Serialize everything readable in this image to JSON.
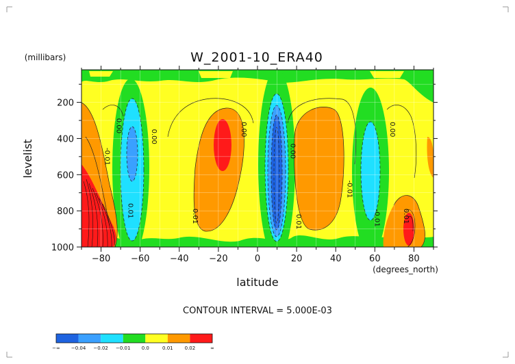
{
  "chart_data": {
    "type": "contour",
    "title": "W_2001-10_ERA40",
    "ylabel": "levelist",
    "y_units": "(millibars)",
    "xlabel": "latitude",
    "x_units": "(degrees_north)",
    "xlim": [
      -90,
      90
    ],
    "ylim": [
      1000,
      20
    ],
    "x_ticks": [
      -80,
      -60,
      -40,
      -20,
      0,
      20,
      40,
      60,
      80
    ],
    "y_ticks": [
      200,
      400,
      600,
      800,
      1000
    ],
    "y_tick_labels": [
      "200",
      "400",
      "600",
      "800",
      "1000"
    ],
    "grid": true,
    "contour_interval_text": "CONTOUR INTERVAL = 5.000E-03",
    "colorbar": {
      "levels": [
        "-∞",
        "-0.04",
        "-0.02",
        "-0.01",
        "0.0",
        "0.01",
        "0.02",
        "∞"
      ],
      "colors": [
        "#1e63e0",
        "#3aa0ff",
        "#1fe0ff",
        "#22dd22",
        "#ffff22",
        "#ff9900",
        "#ff1a1a"
      ]
    },
    "contour_labels": [
      {
        "text": "0.00",
        "lat": -72,
        "lev": 330
      },
      {
        "text": "0.00",
        "lat": -54,
        "lev": 390
      },
      {
        "text": "-0.01",
        "lat": -78,
        "lev": 500
      },
      {
        "text": "0.01",
        "lat": -66,
        "lev": 800
      },
      {
        "text": "0.00",
        "lat": -8,
        "lev": 350
      },
      {
        "text": "0.01",
        "lat": -33,
        "lev": 830
      },
      {
        "text": "0.00",
        "lat": 17,
        "lev": 470
      },
      {
        "text": "0.01",
        "lat": 20,
        "lev": 860
      },
      {
        "text": "-0.01",
        "lat": 46,
        "lev": 680
      },
      {
        "text": "-0.01",
        "lat": 60,
        "lev": 840
      },
      {
        "text": "0.00",
        "lat": 68,
        "lev": 350
      },
      {
        "text": "0.01",
        "lat": 75,
        "lev": 830
      }
    ],
    "features": [
      {
        "type": "min",
        "lat": -64,
        "lev": 520,
        "value": -0.02
      },
      {
        "type": "max",
        "lat": -18,
        "lev": 450,
        "value": 0.02
      },
      {
        "type": "min",
        "lat": 9,
        "lev": 560,
        "value": -0.04
      },
      {
        "type": "max",
        "lat": 31,
        "lev": 500,
        "value": 0.015
      },
      {
        "type": "min",
        "lat": 61,
        "lev": 560,
        "value": -0.02
      },
      {
        "type": "max",
        "lat": -84,
        "lev": 870,
        "value": 0.03
      },
      {
        "type": "max",
        "lat": 84,
        "lev": 930,
        "value": 0.02
      }
    ]
  }
}
